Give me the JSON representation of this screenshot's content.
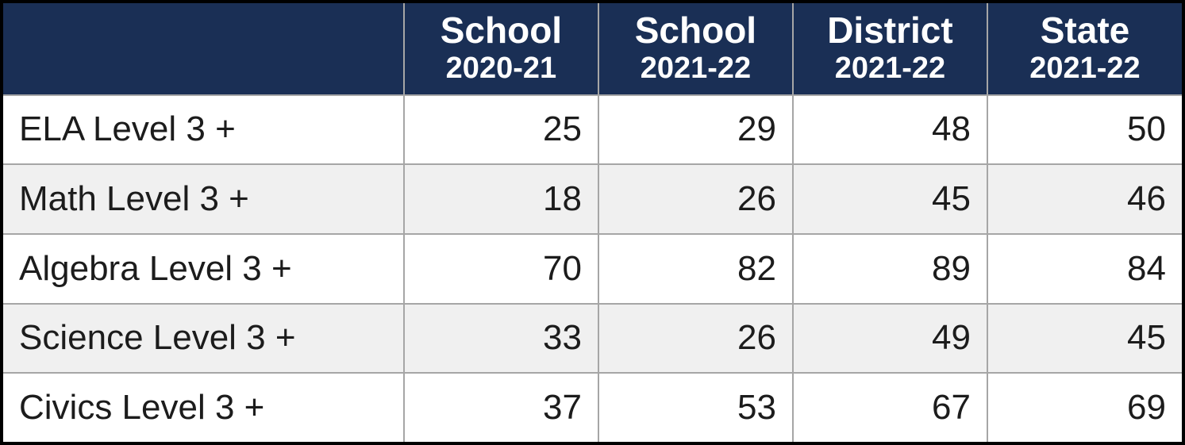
{
  "table": {
    "type": "table",
    "header_bg_color": "#1a2f55",
    "header_text_color": "#ffffff",
    "row_bg_odd": "#ffffff",
    "row_bg_even": "#f0f0f0",
    "grid_color": "#a6a6a6",
    "outer_border_color": "#000000",
    "text_color": "#1c1c1c",
    "header_top_fontsize_pt": 34,
    "header_bottom_fontsize_pt": 28,
    "body_fontsize_pt": 33,
    "column_widths_pct": [
      34,
      16.5,
      16.5,
      16.5,
      16.5
    ],
    "label_align": "left",
    "value_align": "right",
    "columns": [
      {
        "top": "",
        "bottom": ""
      },
      {
        "top": "School",
        "bottom": "2020-21"
      },
      {
        "top": "School",
        "bottom": "2021-22"
      },
      {
        "top": "District",
        "bottom": "2021-22"
      },
      {
        "top": "State",
        "bottom": "2021-22"
      }
    ],
    "rows": [
      {
        "label": "ELA Level 3 +",
        "values": [
          25,
          29,
          48,
          50
        ]
      },
      {
        "label": "Math Level 3 +",
        "values": [
          18,
          26,
          45,
          46
        ]
      },
      {
        "label": "Algebra Level 3 +",
        "values": [
          70,
          82,
          89,
          84
        ]
      },
      {
        "label": "Science Level 3 +",
        "values": [
          33,
          26,
          49,
          45
        ]
      },
      {
        "label": "Civics Level 3 +",
        "values": [
          37,
          53,
          67,
          69
        ]
      }
    ]
  }
}
